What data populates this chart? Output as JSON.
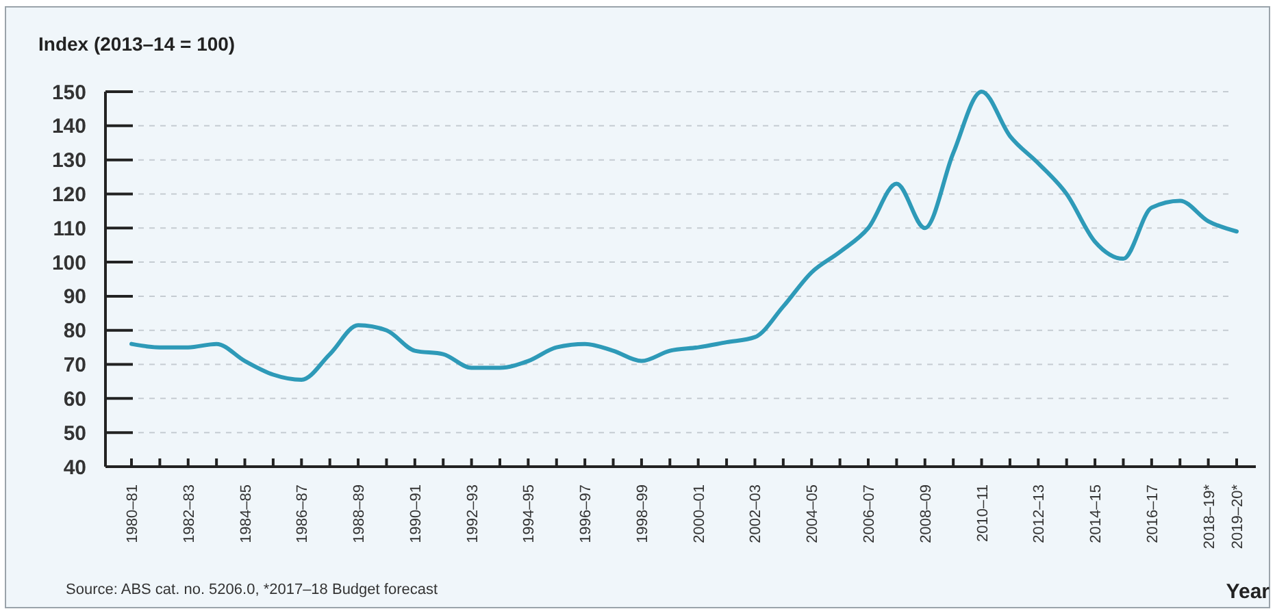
{
  "chart_data": {
    "type": "line",
    "ylabel": "Index (2013–14 = 100)",
    "xlabel": "Year",
    "annotations": [
      "Source: ABS cat. no. 5206.0, *2017–18 Budget forecast"
    ],
    "categories": [
      "1980–81",
      null,
      "1982–83",
      null,
      "1984–85",
      null,
      "1986–87",
      null,
      "1988–89",
      null,
      "1990–91",
      null,
      "1992–93",
      null,
      "1994–95",
      null,
      "1996–97",
      null,
      "1998–99",
      null,
      "2000–01",
      null,
      "2002–03",
      null,
      "2004–05",
      null,
      "2006–07",
      null,
      "2008–09",
      null,
      "2010–11",
      null,
      "2012–13",
      null,
      "2014–15",
      null,
      "2016–17",
      null,
      "2018–19*",
      "2019–20*"
    ],
    "series": [
      {
        "color": "#2e9ab8",
        "values": [
          76,
          75,
          75,
          76,
          71,
          67,
          65.5,
          73,
          81.5,
          80,
          74,
          73,
          69,
          69,
          71,
          75,
          76,
          74,
          71,
          74,
          75,
          76.5,
          78,
          87,
          97,
          103,
          110,
          123,
          110,
          132,
          150,
          137,
          129,
          120,
          106,
          101,
          116,
          118,
          112,
          109
        ]
      }
    ],
    "ylim": [
      40,
      150
    ],
    "yticks": [
      40,
      50,
      60,
      70,
      80,
      90,
      100,
      110,
      120,
      130,
      140,
      150
    ],
    "grid": "y",
    "marker": "none",
    "line_style": "solid"
  }
}
